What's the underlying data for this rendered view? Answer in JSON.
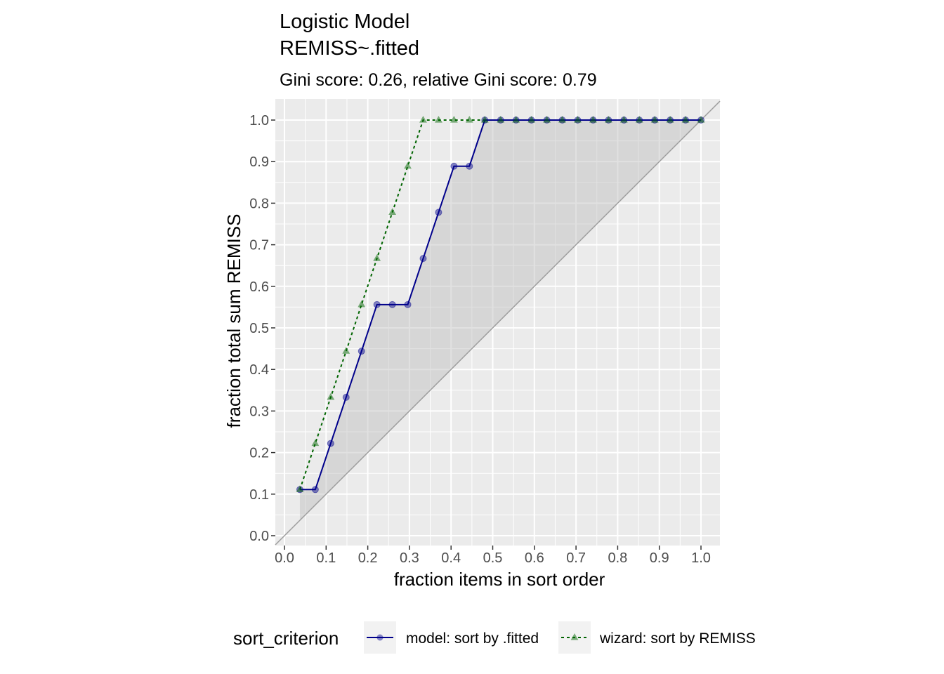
{
  "chart_data": {
    "type": "line",
    "title": "Logistic Model",
    "title_line2": "REMISS~.fitted",
    "subtitle": "Gini score: 0.26, relative Gini score: 0.79",
    "xlabel": "fraction items in sort order",
    "ylabel": "fraction total sum REMISS",
    "xlim": [
      0,
      1
    ],
    "ylim": [
      0,
      1
    ],
    "x_ticks": [
      "0.0",
      "0.1",
      "0.2",
      "0.3",
      "0.4",
      "0.5",
      "0.6",
      "0.7",
      "0.8",
      "0.9",
      "1.0"
    ],
    "y_ticks": [
      "0.0",
      "0.1",
      "0.2",
      "0.3",
      "0.4",
      "0.5",
      "0.6",
      "0.7",
      "0.8",
      "0.9",
      "1.0"
    ],
    "grid": true,
    "legend_position": "bottom",
    "legend_title": "sort_criterion",
    "diagonal_reference": true,
    "shaded_region": "between model curve and diagonal",
    "x": [
      0.037,
      0.074,
      0.111,
      0.148,
      0.185,
      0.222,
      0.259,
      0.296,
      0.333,
      0.37,
      0.407,
      0.444,
      0.481,
      0.519,
      0.556,
      0.593,
      0.63,
      0.667,
      0.704,
      0.741,
      0.778,
      0.815,
      0.852,
      0.889,
      0.926,
      0.963,
      1.0
    ],
    "series": [
      {
        "name": "model: sort by .fitted",
        "color": "#00008b",
        "marker": "circle",
        "line_style": "solid",
        "values": [
          0.111,
          0.111,
          0.222,
          0.333,
          0.444,
          0.556,
          0.556,
          0.556,
          0.667,
          0.778,
          0.889,
          0.889,
          1.0,
          1.0,
          1.0,
          1.0,
          1.0,
          1.0,
          1.0,
          1.0,
          1.0,
          1.0,
          1.0,
          1.0,
          1.0,
          1.0,
          1.0
        ]
      },
      {
        "name": "wizard: sort by REMISS",
        "color": "#006400",
        "marker": "triangle",
        "line_style": "dashed",
        "values": [
          0.111,
          0.222,
          0.333,
          0.444,
          0.556,
          0.667,
          0.778,
          0.889,
          1.0,
          1.0,
          1.0,
          1.0,
          1.0,
          1.0,
          1.0,
          1.0,
          1.0,
          1.0,
          1.0,
          1.0,
          1.0,
          1.0,
          1.0,
          1.0,
          1.0,
          1.0,
          1.0
        ]
      }
    ]
  }
}
